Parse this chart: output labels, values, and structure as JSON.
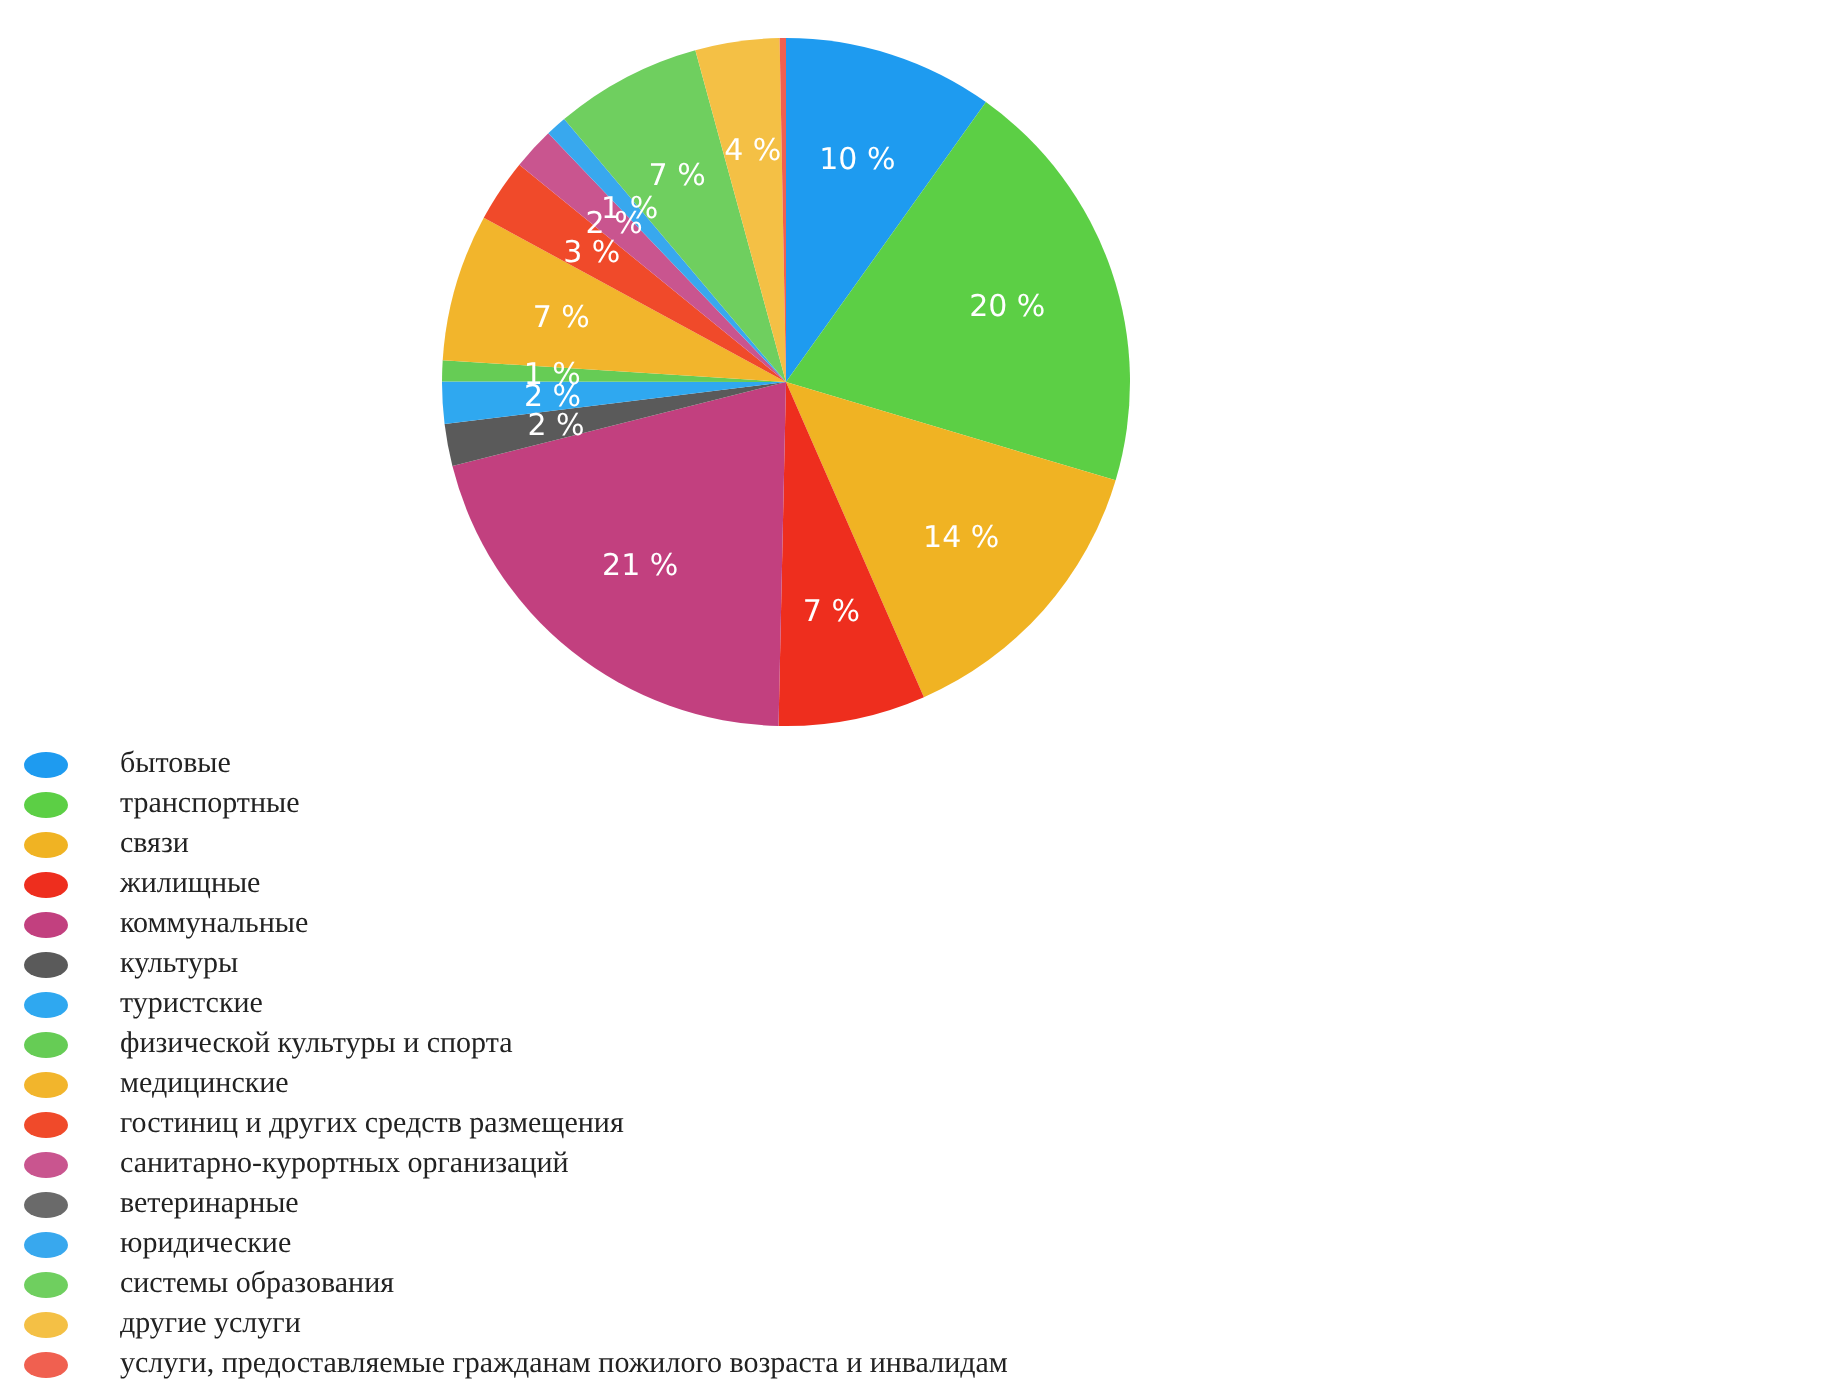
{
  "chart_data": {
    "type": "pie",
    "categories": [
      "бытовые",
      "транспортные",
      "связи",
      "жилищные",
      "коммунальные",
      "культуры",
      "туристские",
      "физической культуры и спорта",
      "медицинские",
      "гостиниц и других средств размещения",
      "санитарно-курортных организаций",
      "ветеринарные",
      "юридические",
      "системы образования",
      "другие услуги",
      "услуги, предоставляемые гражданам пожилого возраста и инвалидам"
    ],
    "values": [
      10,
      20,
      14,
      7,
      21,
      2,
      2,
      1,
      7,
      3,
      2,
      0,
      1,
      7,
      4,
      0.3
    ],
    "value_labels": [
      "10 %",
      "20 %",
      "14 %",
      "7 %",
      "21 %",
      "2 %",
      "2 %",
      "1 %",
      "7 %",
      "3 %",
      "2 %",
      null,
      "1 %",
      "7 %",
      "4 %",
      null
    ],
    "colors": [
      "#1e9bf0",
      "#5ccf45",
      "#f0b323",
      "#ee2e1e",
      "#c2407f",
      "#5a5a5a",
      "#2fa8f0",
      "#66cc55",
      "#f2b52c",
      "#f04a2a",
      "#c9558f",
      "#6a6a6a",
      "#38a8ee",
      "#6fcf5f",
      "#f4c045",
      "#f06050"
    ],
    "legend": "bottom"
  }
}
